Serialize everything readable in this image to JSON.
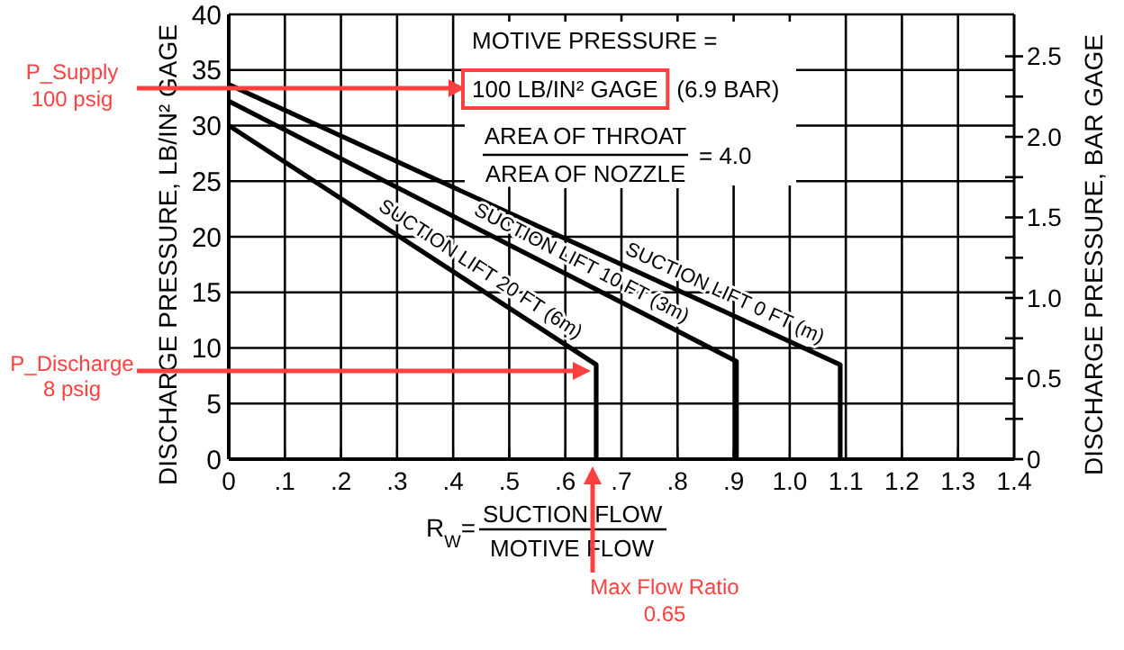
{
  "chart_data": {
    "type": "line",
    "xlabel": "R$_{W}$=\nSUCTION FLOW\nMOTIVE FLOW",
    "ylabel": "DISCHARGE PRESSURE, LB/IN² GAGE",
    "y2label": "DISCHARGE PRESSURE, BAR GAGE",
    "xlim": [
      0,
      1.4
    ],
    "xticks": [
      0,
      {
        "value": 0.1,
        "label": ".1"
      },
      {
        "value": 0.2,
        "label": ".2"
      },
      {
        "value": 0.3,
        "label": ".3"
      },
      {
        "value": 0.4,
        "label": ".4"
      },
      {
        "value": 0.5,
        "label": ".5"
      },
      {
        "value": 0.6,
        "label": ".6"
      },
      {
        "value": 0.7,
        "label": ".7"
      },
      {
        "value": 0.8,
        "label": ".8"
      },
      {
        "value": 0.9,
        "label": ".9"
      },
      {
        "value": 1.0,
        "label": "1.0"
      },
      1.1,
      1.2,
      1.3,
      1.4
    ],
    "ylim": [
      0,
      40
    ],
    "yticks": [
      0,
      5,
      10,
      15,
      20,
      25,
      30,
      35,
      40
    ],
    "y2lim": [
      0,
      2.76
    ],
    "y2ticks": [
      0,
      {
        "value": 0.25,
        "label": null
      },
      0.5,
      {
        "value": 0.75,
        "label": null
      },
      {
        "value": 1.0,
        "label": "1.0"
      },
      {
        "value": 1.25,
        "label": null
      },
      1.5,
      {
        "value": 1.75,
        "label": null
      },
      {
        "value": 2.0,
        "label": "2.0"
      },
      {
        "value": 2.25,
        "label": null
      },
      2.5
    ],
    "grid": true,
    "marker": "none",
    "line_style": "solid",
    "series": [
      {
        "name": "SUCTION LIFT 0 FT (m)",
        "color": "#000000",
        "x": [
          0,
          1.09,
          1.09
        ],
        "values": [
          33.7,
          8.5,
          0
        ]
      },
      {
        "name": "SUCTION LIFT 10 FT (3m)",
        "color": "#000000",
        "x": [
          0,
          0.905,
          0.905
        ],
        "values": [
          32.2,
          8.8,
          0
        ]
      },
      {
        "name": "SUCTION LIFT 20 FT (6m)",
        "color": "#000000",
        "x": [
          0,
          0.655,
          0.655
        ],
        "values": [
          30,
          8.5,
          0
        ]
      }
    ],
    "annotations": [
      "MOTIVE PRESSURE =",
      "100 LB/IN² GAGE",
      "(6.9 BAR)",
      "AREA OF THROAT\nAREA OF NOZZLE\n= 4.0",
      "P_Supply\n100 psig",
      "P_Discharge\n8 psig",
      "Max Flow Ratio\n0.65"
    ]
  }
}
